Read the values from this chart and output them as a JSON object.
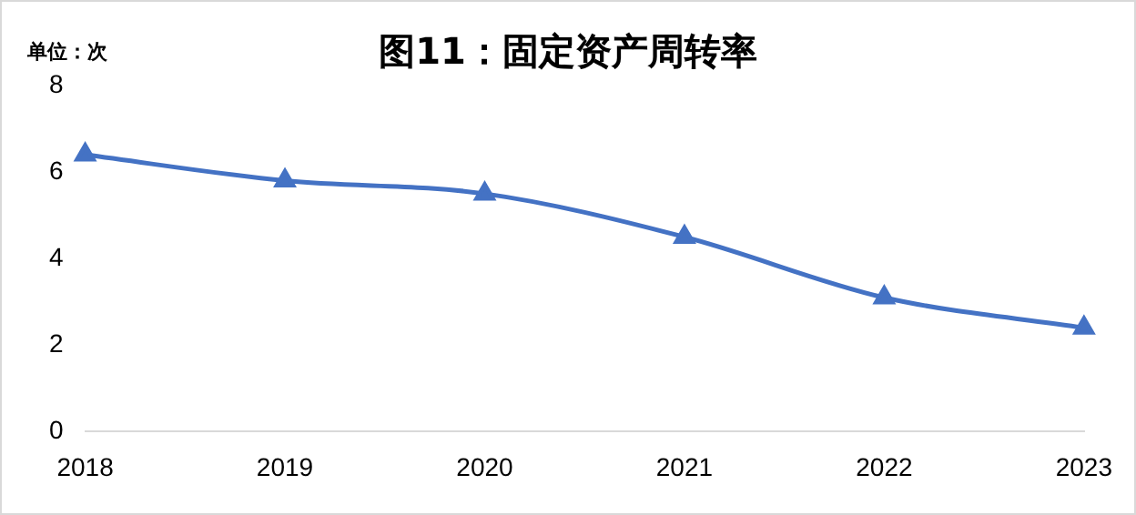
{
  "chart_data": {
    "type": "line",
    "title": "图11：固定资产周转率",
    "ylabel": "单位：次",
    "categories": [
      "2018",
      "2019",
      "2020",
      "2021",
      "2022",
      "2023"
    ],
    "series": [
      {
        "color": "#4472c4",
        "values": [
          6.4,
          5.8,
          5.5,
          4.5,
          3.1,
          2.4
        ]
      }
    ],
    "ylim": [
      0,
      8
    ],
    "yticks": [
      0,
      2,
      4,
      6,
      8
    ],
    "grid": false,
    "legend": false,
    "marker": "triangle",
    "line_style": "solid"
  }
}
